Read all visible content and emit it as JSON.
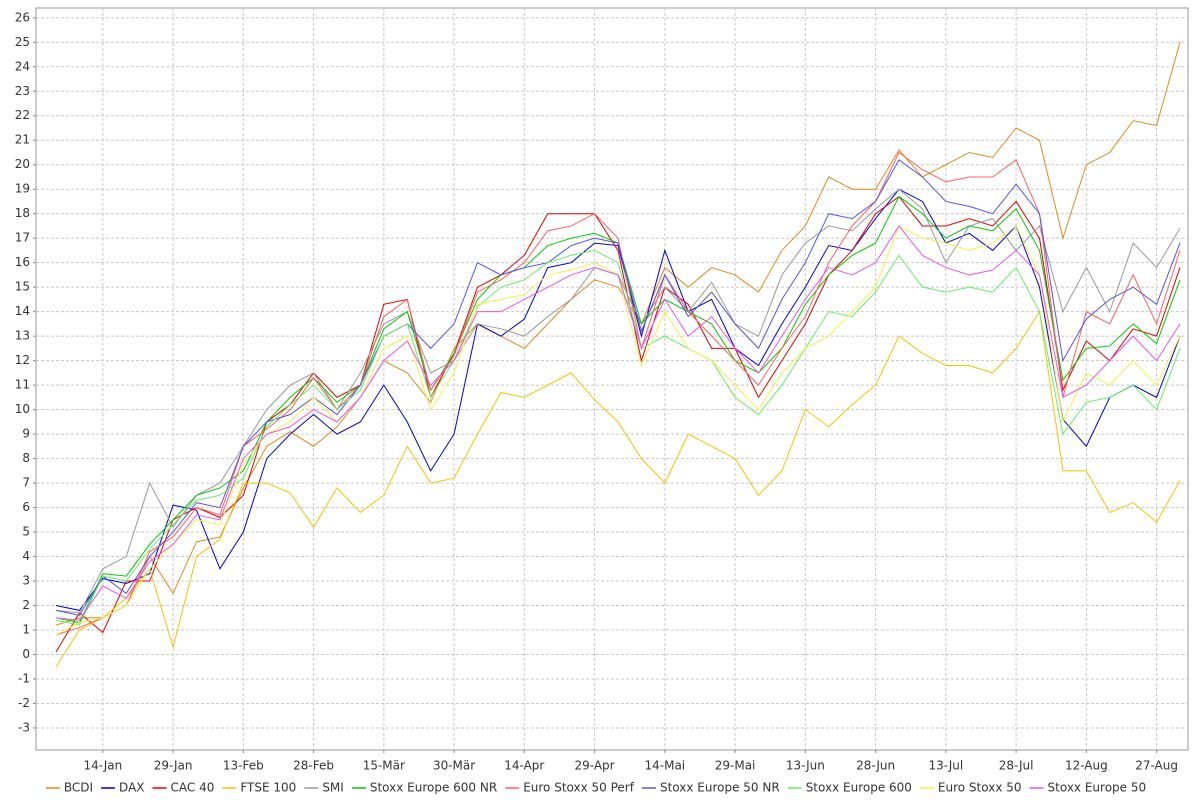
{
  "chart_data": {
    "type": "line",
    "categories": [
      null,
      null,
      "14-Jan",
      null,
      null,
      "29-Jan",
      null,
      null,
      "13-Feb",
      null,
      null,
      "28-Feb",
      null,
      null,
      "15-Mär",
      null,
      null,
      "30-Mär",
      null,
      null,
      "14-Apr",
      null,
      null,
      "29-Apr",
      null,
      null,
      "14-Mai",
      null,
      null,
      "29-Mai",
      null,
      null,
      "13-Jun",
      null,
      null,
      "28-Jun",
      null,
      null,
      "13-Jul",
      null,
      null,
      "28-Jul",
      null,
      null,
      "12-Aug",
      null,
      null,
      "27-Aug",
      null
    ],
    "ylim": [
      -3.9,
      26.4
    ],
    "yticks": [
      -3,
      -2,
      -1,
      0,
      1,
      2,
      3,
      4,
      5,
      6,
      7,
      8,
      9,
      10,
      11,
      12,
      13,
      14,
      15,
      16,
      17,
      18,
      19,
      20,
      21,
      22,
      23,
      24,
      25,
      26
    ],
    "grid": true,
    "legend": "bottom",
    "series": [
      {
        "name": "BCDI",
        "color": "#e08a1e",
        "values": [
          1.2,
          1.5,
          1.5,
          2.0,
          4.0,
          2.5,
          4.6,
          4.8,
          6.8,
          8.5,
          9.1,
          8.5,
          9.3,
          10.5,
          12.0,
          11.5,
          10.3,
          12.5,
          13.5,
          13.0,
          12.5,
          13.5,
          14.5,
          15.3,
          15.0,
          13.5,
          15.8,
          15.0,
          15.8,
          15.5,
          14.8,
          16.5,
          17.5,
          19.5,
          19.0,
          19.0,
          20.6,
          19.5,
          20.0,
          20.5,
          20.3,
          21.5,
          21.0,
          17.0,
          20.0,
          20.5,
          21.8,
          21.6,
          25.0
        ]
      },
      {
        "name": "DAX",
        "color": "#0000cc",
        "values": [
          2.0,
          1.8,
          3.1,
          2.9,
          3.3,
          6.1,
          5.9,
          3.5,
          5.0,
          8.0,
          9.0,
          9.8,
          9.0,
          9.5,
          11.0,
          9.5,
          7.5,
          9.0,
          13.5,
          13.0,
          13.7,
          15.8,
          16.0,
          16.8,
          16.7,
          13.0,
          16.5,
          14.0,
          14.5,
          12.5,
          11.8,
          13.5,
          15.0,
          16.7,
          16.5,
          17.8,
          19.0,
          18.5,
          16.8,
          17.2,
          16.5,
          17.5,
          15.0,
          9.6,
          8.5,
          10.5,
          11.0,
          10.5,
          13.0
        ]
      },
      {
        "name": "CAC 40",
        "color": "#dd0000",
        "values": [
          0.1,
          1.7,
          0.9,
          3.0,
          3.0,
          5.5,
          6.0,
          5.6,
          6.5,
          9.5,
          10.2,
          11.5,
          10.5,
          11.0,
          14.3,
          14.5,
          10.5,
          12.3,
          15.0,
          15.5,
          16.3,
          18.0,
          18.0,
          18.0,
          16.5,
          12.0,
          15.0,
          14.3,
          12.5,
          12.5,
          10.5,
          12.0,
          13.5,
          15.5,
          16.5,
          18.0,
          18.7,
          17.5,
          17.5,
          17.8,
          17.5,
          18.5,
          17.0,
          10.8,
          12.8,
          12.0,
          13.3,
          13.0,
          15.8
        ]
      },
      {
        "name": "FTSE 100",
        "color": "#f5c400",
        "values": [
          -0.5,
          1.0,
          1.5,
          2.3,
          3.5,
          0.3,
          4.0,
          4.7,
          7.0,
          7.0,
          6.6,
          5.2,
          6.8,
          5.8,
          6.5,
          8.5,
          7.0,
          7.2,
          9.0,
          10.7,
          10.5,
          11.0,
          11.5,
          10.4,
          9.5,
          8.0,
          7.0,
          9.0,
          8.5,
          8.0,
          6.5,
          7.5,
          10.0,
          9.3,
          10.2,
          11.0,
          13.0,
          12.3,
          11.8,
          11.8,
          11.5,
          12.5,
          14.0,
          7.5,
          7.5,
          5.8,
          6.2,
          5.4,
          7.1
        ]
      },
      {
        "name": "SMI",
        "color": "#999999",
        "values": [
          1.8,
          1.7,
          3.5,
          4.0,
          7.0,
          5.2,
          6.5,
          7.0,
          8.5,
          10.0,
          11.0,
          11.5,
          10.0,
          11.5,
          13.5,
          14.0,
          11.5,
          12.0,
          13.5,
          13.3,
          13.0,
          13.8,
          14.5,
          15.8,
          15.5,
          13.5,
          15.0,
          14.0,
          15.2,
          13.5,
          13.0,
          15.5,
          16.8,
          17.5,
          17.3,
          18.2,
          19.0,
          18.2,
          16.0,
          17.5,
          17.8,
          16.5,
          17.5,
          14.0,
          15.8,
          14.0,
          16.8,
          15.8,
          17.4
        ]
      },
      {
        "name": "Stoxx Europe 600 NR",
        "color": "#00cc00",
        "values": [
          1.5,
          1.3,
          3.3,
          3.2,
          4.5,
          5.5,
          6.5,
          6.8,
          7.5,
          9.5,
          10.5,
          11.3,
          10.3,
          11.0,
          13.3,
          14.0,
          10.8,
          12.3,
          14.5,
          15.5,
          15.8,
          16.7,
          17.0,
          17.2,
          16.8,
          13.5,
          14.5,
          14.0,
          13.5,
          12.0,
          11.5,
          12.5,
          14.3,
          15.5,
          16.3,
          16.8,
          18.7,
          18.0,
          17.0,
          17.5,
          17.3,
          18.2,
          16.5,
          11.2,
          12.5,
          12.6,
          13.5,
          12.7,
          15.3
        ]
      },
      {
        "name": "Euro Stoxx 50 Perf",
        "color": "#ff6060",
        "values": [
          0.8,
          1.1,
          1.5,
          2.0,
          4.2,
          4.8,
          6.0,
          5.7,
          8.5,
          9.2,
          10.0,
          11.3,
          10.0,
          11.0,
          13.8,
          14.5,
          10.8,
          12.2,
          14.8,
          15.3,
          16.0,
          17.3,
          17.5,
          18.0,
          17.0,
          12.5,
          15.5,
          14.0,
          13.0,
          12.0,
          11.0,
          12.5,
          13.8,
          16.0,
          17.5,
          18.5,
          20.5,
          19.8,
          19.3,
          19.5,
          19.5,
          20.2,
          18.0,
          10.5,
          14.0,
          13.5,
          15.5,
          13.5,
          16.5
        ]
      },
      {
        "name": "Stoxx Europe 50 NR",
        "color": "#5555dd",
        "values": [
          1.8,
          1.6,
          3.2,
          2.5,
          4.0,
          5.0,
          6.2,
          6.0,
          8.5,
          9.5,
          9.8,
          10.5,
          9.8,
          11.0,
          13.0,
          13.5,
          12.5,
          13.5,
          16.0,
          15.5,
          15.8,
          16.0,
          16.7,
          17.0,
          16.8,
          13.2,
          15.5,
          13.8,
          14.8,
          13.5,
          12.5,
          14.5,
          16.0,
          18.0,
          17.8,
          18.5,
          20.2,
          19.5,
          18.5,
          18.3,
          18.0,
          19.2,
          18.0,
          12.0,
          13.7,
          14.5,
          15.0,
          14.3,
          16.8
        ]
      },
      {
        "name": "Stoxx Europe 600",
        "color": "#66ee66",
        "values": [
          1.4,
          1.2,
          3.2,
          3.0,
          4.3,
          5.3,
          6.3,
          6.5,
          7.2,
          9.3,
          10.2,
          11.0,
          10.0,
          10.8,
          13.0,
          13.5,
          10.5,
          12.0,
          14.2,
          15.0,
          15.3,
          16.0,
          16.3,
          16.5,
          16.0,
          12.5,
          13.0,
          12.5,
          12.0,
          10.5,
          9.8,
          11.0,
          12.5,
          14.0,
          13.8,
          14.8,
          16.3,
          15.0,
          14.8,
          15.0,
          14.8,
          15.8,
          14.0,
          9.0,
          10.3,
          10.5,
          11.0,
          10.0,
          12.5
        ]
      },
      {
        "name": "Euro Stoxx 50",
        "color": "#f2f24a",
        "values": [
          0.8,
          1.3,
          1.5,
          2.0,
          3.5,
          4.5,
          5.5,
          5.3,
          7.8,
          9.0,
          9.5,
          10.5,
          9.5,
          10.5,
          12.5,
          13.0,
          10.0,
          11.5,
          14.3,
          14.5,
          14.7,
          15.5,
          15.7,
          16.0,
          15.5,
          11.8,
          14.0,
          12.5,
          12.0,
          11.0,
          10.0,
          11.5,
          12.5,
          13.0,
          14.0,
          15.0,
          17.5,
          17.0,
          16.8,
          16.5,
          16.8,
          17.5,
          15.5,
          9.5,
          11.5,
          11.0,
          12.0,
          11.0,
          13.0
        ]
      },
      {
        "name": "Stoxx Europe 50",
        "color": "#ee55ee",
        "values": [
          1.5,
          1.4,
          2.8,
          2.3,
          3.8,
          4.5,
          5.7,
          5.5,
          8.0,
          9.0,
          9.3,
          10.0,
          9.5,
          10.5,
          12.0,
          12.8,
          11.0,
          12.0,
          14.0,
          14.0,
          14.5,
          15.0,
          15.5,
          15.8,
          15.5,
          12.5,
          14.5,
          13.0,
          13.8,
          12.5,
          11.5,
          13.0,
          14.5,
          15.8,
          15.5,
          16.0,
          17.5,
          16.3,
          15.8,
          15.5,
          15.7,
          16.5,
          15.5,
          10.5,
          11.0,
          12.0,
          13.0,
          12.0,
          13.5
        ]
      }
    ]
  }
}
